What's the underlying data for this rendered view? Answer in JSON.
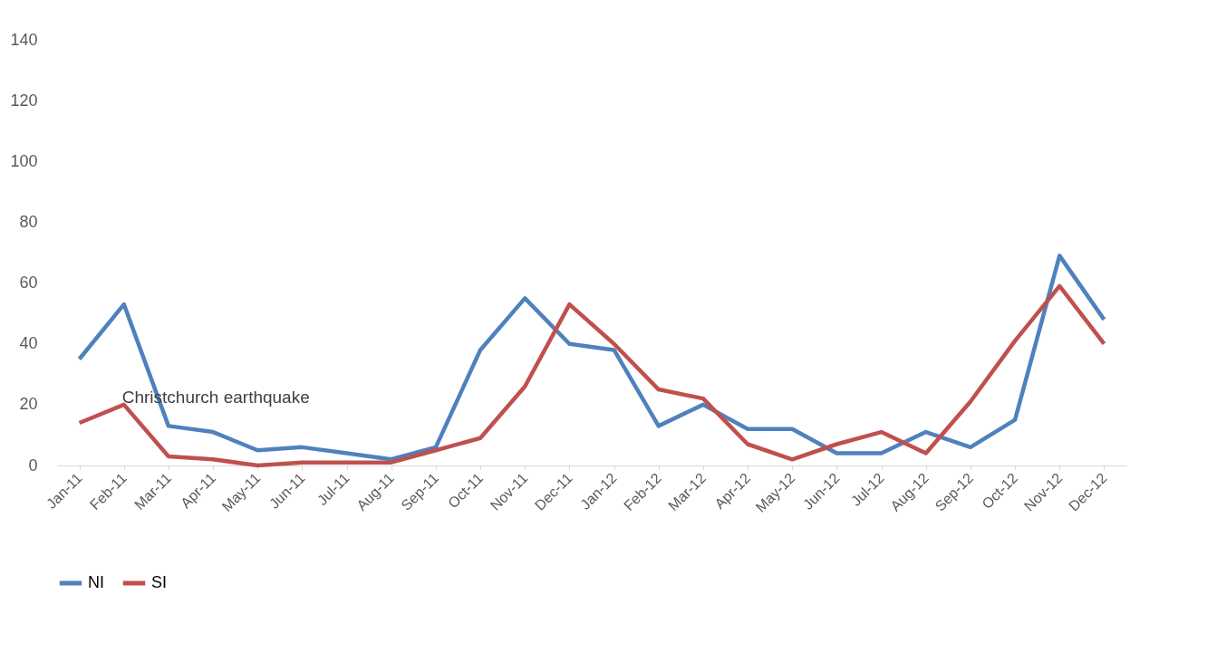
{
  "chart_data": {
    "type": "line",
    "categories": [
      "Jan-11",
      "Feb-11",
      "Mar-11",
      "Apr-11",
      "May-11",
      "Jun-11",
      "Jul-11",
      "Aug-11",
      "Sep-11",
      "Oct-11",
      "Nov-11",
      "Dec-11",
      "Jan-12",
      "Feb-12",
      "Mar-12",
      "Apr-12",
      "May-12",
      "Jun-12",
      "Jul-12",
      "Aug-12",
      "Sep-12",
      "Oct-12",
      "Nov-12",
      "Dec-12"
    ],
    "series": [
      {
        "name": "NI",
        "color": "#4f81bd",
        "values": [
          35,
          53,
          13,
          11,
          5,
          6,
          4,
          2,
          6,
          38,
          55,
          40,
          38,
          13,
          20,
          12,
          12,
          4,
          4,
          11,
          6,
          15,
          69,
          48
        ]
      },
      {
        "name": "SI",
        "color": "#c0504d",
        "values": [
          14,
          20,
          3,
          2,
          0,
          1,
          1,
          1,
          5,
          9,
          26,
          53,
          40,
          25,
          22,
          7,
          2,
          7,
          11,
          4,
          21,
          41,
          59,
          40
        ]
      }
    ],
    "ylim": [
      0,
      140
    ],
    "yticks": [
      0,
      20,
      40,
      60,
      80,
      100,
      120,
      140
    ],
    "grid": false,
    "legend": "bottom",
    "marker": "none",
    "line_style": "solid",
    "annotations": [
      {
        "text": "Christchurch earthquake",
        "x": "Feb-11",
        "y": 20
      }
    ]
  }
}
